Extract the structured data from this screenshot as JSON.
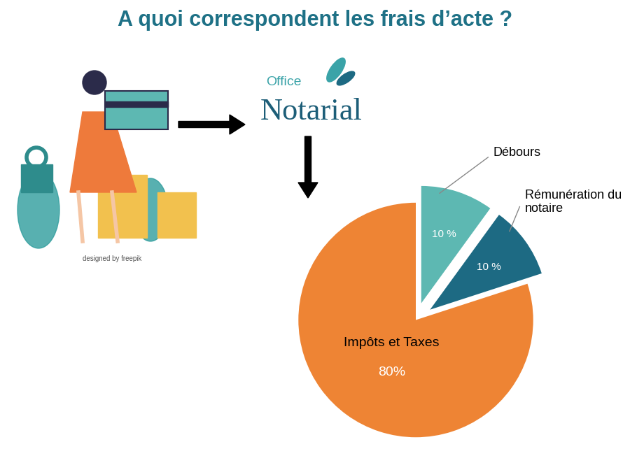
{
  "chart_data": {
    "type": "pie",
    "title": "A quoi correspondent les frais d’acte ?",
    "categories": [
      "Débours",
      "Rémunération du notaire",
      "Impôts et Taxes"
    ],
    "values": [
      10,
      10,
      80
    ],
    "value_labels": [
      "10 %",
      "10 %",
      "80%"
    ],
    "colors": [
      "#5DB8B2",
      "#1D6A83",
      "#EE8434"
    ],
    "annotations": [
      "Office",
      "Notarial",
      "designed by freepik"
    ]
  }
}
